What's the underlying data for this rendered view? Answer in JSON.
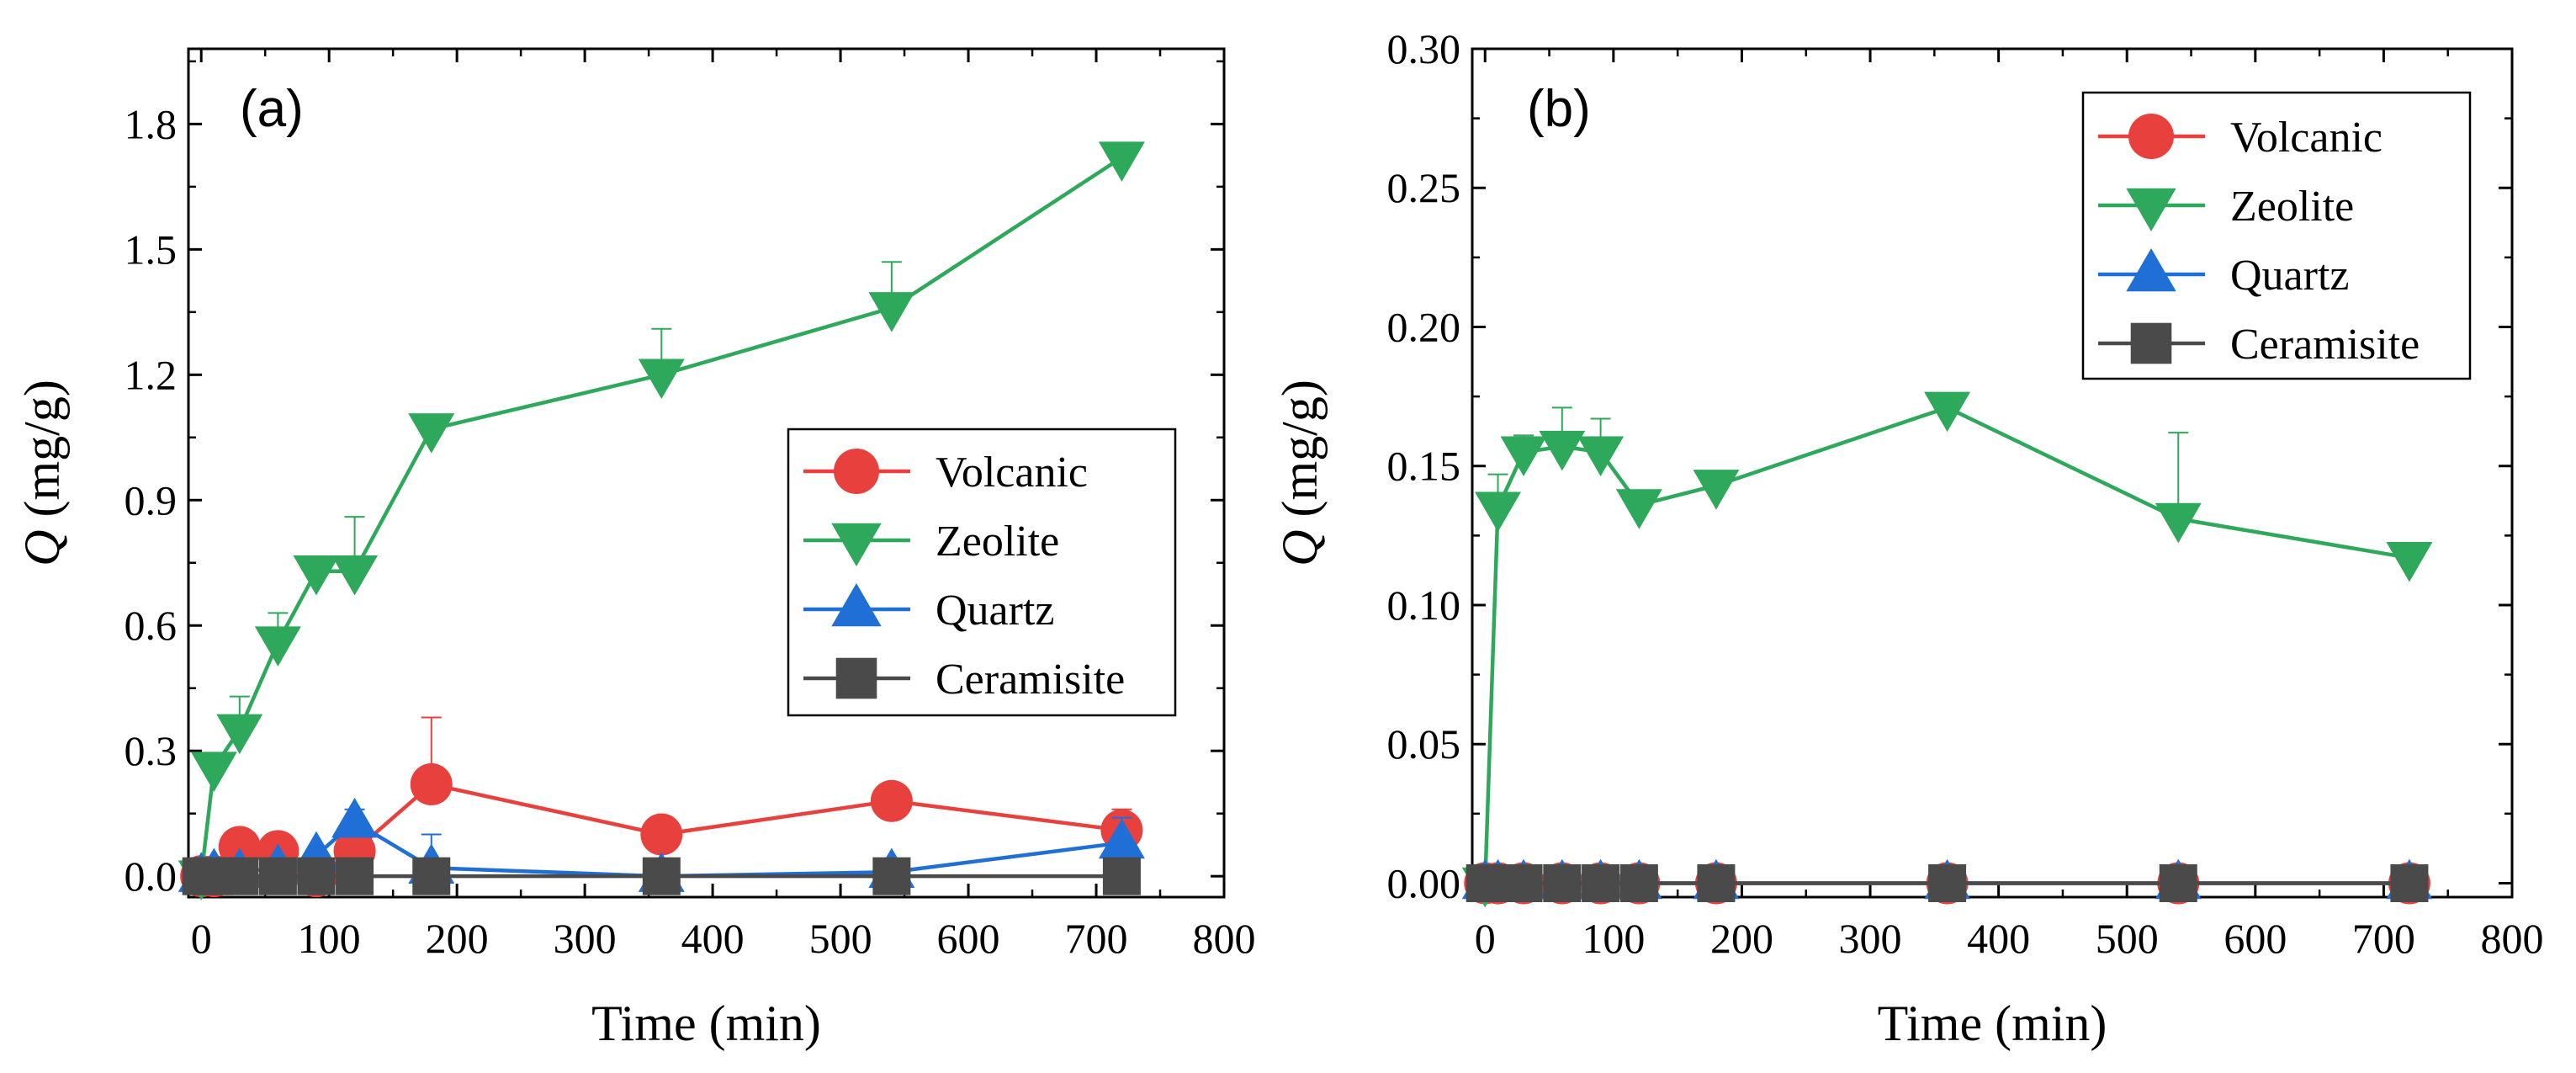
{
  "chart_data": [
    {
      "type": "line",
      "panel_label": "(a)",
      "xlabel": "Time (min)",
      "ylabel_symbol": "Q",
      "ylabel_unit": " (mg/g)",
      "xlim": [
        -10,
        800
      ],
      "ylim": [
        -0.05,
        1.98
      ],
      "xticks": [
        0,
        100,
        200,
        300,
        400,
        500,
        600,
        700,
        800
      ],
      "yticks": [
        0.0,
        0.3,
        0.6,
        0.9,
        1.2,
        1.5,
        1.8
      ],
      "ytick_labels": [
        "0.0",
        "0.3",
        "0.6",
        "0.9",
        "1.2",
        "1.5",
        "1.8"
      ],
      "legend_position": "middle-right",
      "x": [
        0,
        10,
        30,
        60,
        90,
        120,
        180,
        360,
        540,
        720
      ],
      "series": [
        {
          "name": "Volcanic",
          "color": "#e8403c",
          "marker": "circle",
          "values": [
            0.0,
            0.0,
            0.07,
            0.06,
            0.0,
            0.06,
            0.22,
            0.1,
            0.18,
            0.11
          ],
          "errors": [
            0,
            0,
            0,
            0,
            0,
            0.03,
            0.16,
            0,
            0,
            0.05
          ]
        },
        {
          "name": "Zeolite",
          "color": "#2ea85a",
          "marker": "triangle-down",
          "values": [
            0.0,
            0.26,
            0.35,
            0.56,
            0.73,
            0.73,
            1.07,
            1.2,
            1.36,
            1.72
          ],
          "errors": [
            0,
            0.03,
            0.08,
            0.07,
            0,
            0.13,
            0,
            0.11,
            0.11,
            0
          ]
        },
        {
          "name": "Quartz",
          "color": "#1f6fd6",
          "marker": "triangle-up",
          "values": [
            0.0,
            0.01,
            0.01,
            0.02,
            0.05,
            0.13,
            0.02,
            0.0,
            0.01,
            0.08
          ],
          "errors": [
            0,
            0,
            0,
            0,
            0,
            0.03,
            0.08,
            0,
            0,
            0.06
          ]
        },
        {
          "name": "Ceramisite",
          "color": "#4a4a4a",
          "marker": "square",
          "values": [
            0.0,
            0.0,
            0.0,
            0.0,
            0.0,
            0.0,
            0.0,
            0.0,
            0.0,
            0.0
          ],
          "errors": [
            0,
            0,
            0,
            0,
            0,
            0,
            0,
            0,
            0,
            0
          ]
        }
      ]
    },
    {
      "type": "line",
      "panel_label": "(b)",
      "xlabel": "Time (min)",
      "ylabel_symbol": "Q",
      "ylabel_unit": " (mg/g)",
      "xlim": [
        -10,
        800
      ],
      "ylim": [
        -0.005,
        0.3
      ],
      "xticks": [
        0,
        100,
        200,
        300,
        400,
        500,
        600,
        700,
        800
      ],
      "yticks": [
        0.0,
        0.05,
        0.1,
        0.15,
        0.2,
        0.25,
        0.3
      ],
      "ytick_labels": [
        "0.00",
        "0.05",
        "0.10",
        "0.15",
        "0.20",
        "0.25",
        "0.30"
      ],
      "legend_position": "top-right",
      "x": [
        0,
        10,
        30,
        60,
        90,
        120,
        180,
        360,
        540,
        720
      ],
      "series": [
        {
          "name": "Volcanic",
          "color": "#e8403c",
          "marker": "circle",
          "values": [
            0,
            0,
            0,
            0,
            0,
            0,
            0,
            0,
            0,
            0
          ],
          "errors": [
            0,
            0,
            0,
            0,
            0,
            0,
            0,
            0,
            0,
            0
          ]
        },
        {
          "name": "Zeolite",
          "color": "#2ea85a",
          "marker": "triangle-down",
          "values": [
            0.0,
            0.135,
            0.155,
            0.157,
            0.155,
            0.136,
            0.143,
            0.171,
            0.131,
            0.117
          ],
          "errors": [
            0,
            0.012,
            0.006,
            0.014,
            0.012,
            0,
            0,
            0,
            0.031,
            0
          ]
        },
        {
          "name": "Quartz",
          "color": "#1f6fd6",
          "marker": "triangle-up",
          "values": [
            0,
            0,
            0,
            0,
            0,
            0,
            0,
            0,
            0,
            0
          ],
          "errors": [
            0,
            0,
            0,
            0,
            0,
            0,
            0,
            0,
            0,
            0
          ]
        },
        {
          "name": "Ceramisite",
          "color": "#4a4a4a",
          "marker": "square",
          "values": [
            0,
            0,
            0,
            0,
            0,
            0,
            0,
            0,
            0,
            0
          ],
          "errors": [
            0,
            0,
            0,
            0,
            0,
            0,
            0,
            0,
            0,
            0
          ]
        }
      ]
    }
  ]
}
